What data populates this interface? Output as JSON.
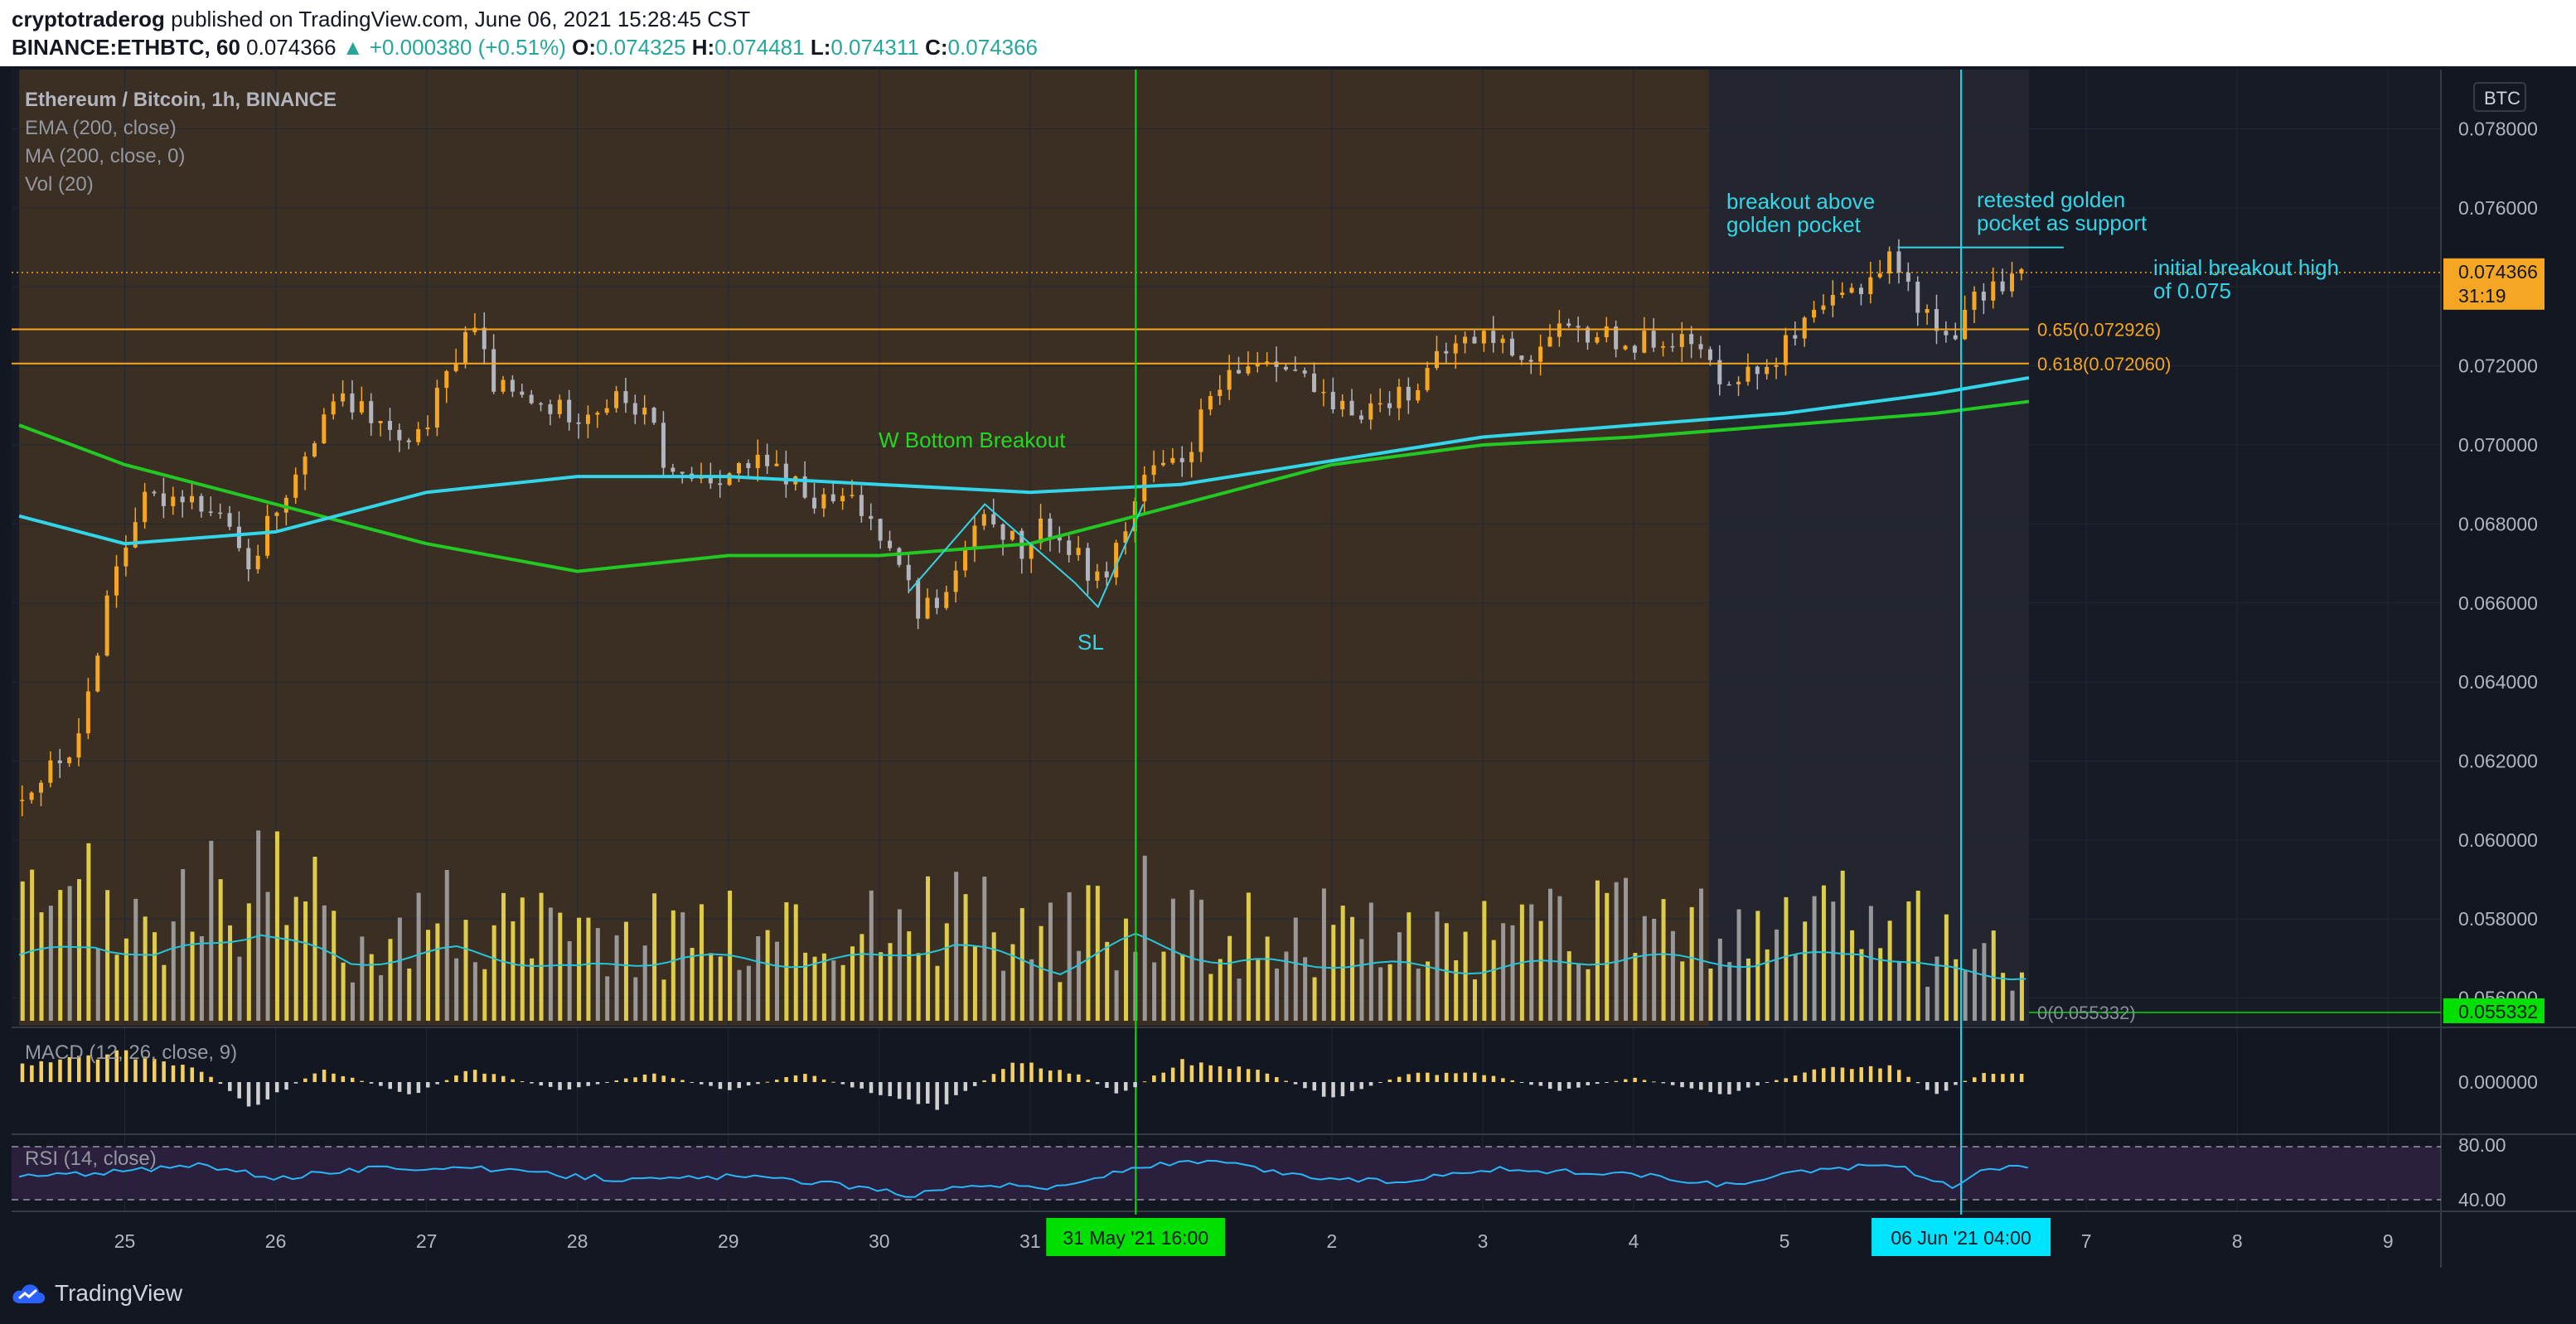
{
  "header": {
    "author": "cryptotraderog",
    "published_text": "published on TradingView.com, June 06, 2021 15:28:45 CST",
    "symbol": "BINANCE:ETHBTC, 60",
    "last": "0.074366",
    "change": "▲ +0.000380 (+0.51%)",
    "o_label": "O:",
    "o": "0.074325",
    "h_label": "H:",
    "h": "0.074481",
    "l_label": "L:",
    "l": "0.074311",
    "c_label": "C:",
    "c": "0.074366"
  },
  "legend": {
    "title": "Ethereum / Bitcoin, 1h, BINANCE",
    "ema": "EMA (200, close)",
    "ma": "MA (200, close, 0)",
    "vol": "Vol (20)",
    "macd": "MACD (12, 26, close, 9)",
    "rsi": "RSI (14, close)"
  },
  "footer": {
    "brand": "TradingView"
  },
  "chart_data": {
    "type": "candlestick",
    "title": "Ethereum / Bitcoin, 1h, BINANCE",
    "currency_badge": "BTC",
    "y_ticks": [
      "0.078000",
      "0.076000",
      "0.074000",
      "0.072000",
      "0.070000",
      "0.068000",
      "0.066000",
      "0.064000",
      "0.062000",
      "0.060000",
      "0.058000",
      "0.056000"
    ],
    "y_ticks_values": [
      0.078,
      0.076,
      0.074,
      0.072,
      0.07,
      0.068,
      0.066,
      0.064,
      0.062,
      0.06,
      0.058,
      0.056
    ],
    "ylim": [
      0.0553,
      0.0795
    ],
    "x_ticks": [
      "25",
      "26",
      "27",
      "28",
      "29",
      "30",
      "31",
      "2",
      "3",
      "4",
      "5",
      "7",
      "8",
      "9"
    ],
    "x_ticks_values": [
      25,
      26,
      27,
      28,
      29,
      30,
      31,
      33,
      34,
      35,
      36,
      38,
      39,
      40
    ],
    "xlim": [
      24.25,
      40.35
    ],
    "price_path": [
      [
        24.3,
        0.061
      ],
      [
        24.7,
        0.0625
      ],
      [
        24.9,
        0.0665
      ],
      [
        25.1,
        0.0685
      ],
      [
        25.4,
        0.0688
      ],
      [
        25.7,
        0.068
      ],
      [
        25.8,
        0.0665
      ],
      [
        26,
        0.0685
      ],
      [
        26.2,
        0.0695
      ],
      [
        26.35,
        0.0712
      ],
      [
        26.6,
        0.0708
      ],
      [
        26.9,
        0.0698
      ],
      [
        27.15,
        0.0718
      ],
      [
        27.28,
        0.0732
      ],
      [
        27.45,
        0.0715
      ],
      [
        27.7,
        0.071
      ],
      [
        28,
        0.0708
      ],
      [
        28.3,
        0.0712
      ],
      [
        28.5,
        0.0705
      ],
      [
        28.6,
        0.0692
      ],
      [
        28.9,
        0.0692
      ],
      [
        29.2,
        0.0695
      ],
      [
        29.4,
        0.0692
      ],
      [
        29.55,
        0.0685
      ],
      [
        29.8,
        0.0686
      ],
      [
        30.1,
        0.0675
      ],
      [
        30.25,
        0.0658
      ],
      [
        30.45,
        0.0662
      ],
      [
        30.6,
        0.0676
      ],
      [
        30.75,
        0.0682
      ],
      [
        30.95,
        0.0672
      ],
      [
        31.1,
        0.068
      ],
      [
        31.3,
        0.0672
      ],
      [
        31.45,
        0.0665
      ],
      [
        31.65,
        0.068
      ],
      [
        31.75,
        0.0692
      ],
      [
        32,
        0.0695
      ],
      [
        32.2,
        0.0712
      ],
      [
        32.5,
        0.0722
      ],
      [
        32.7,
        0.0722
      ],
      [
        33,
        0.0708
      ],
      [
        33.3,
        0.071
      ],
      [
        33.55,
        0.0715
      ],
      [
        33.8,
        0.0725
      ],
      [
        34,
        0.0728
      ],
      [
        34.3,
        0.0722
      ],
      [
        34.5,
        0.0728
      ],
      [
        34.8,
        0.0728
      ],
      [
        35,
        0.0725
      ],
      [
        35.2,
        0.0728
      ],
      [
        35.4,
        0.0725
      ],
      [
        35.55,
        0.0718
      ],
      [
        35.8,
        0.0718
      ],
      [
        36,
        0.0725
      ],
      [
        36.3,
        0.0735
      ],
      [
        36.55,
        0.0742
      ],
      [
        36.7,
        0.0748
      ],
      [
        36.85,
        0.0738
      ],
      [
        37,
        0.0729
      ],
      [
        37.1,
        0.0728
      ],
      [
        37.3,
        0.0738
      ],
      [
        37.5,
        0.0743
      ],
      [
        37.62,
        0.07437
      ]
    ],
    "ema_200": [
      [
        24.3,
        0.0705
      ],
      [
        25,
        0.0695
      ],
      [
        26,
        0.0685
      ],
      [
        27,
        0.0675
      ],
      [
        28,
        0.0668
      ],
      [
        29,
        0.0672
      ],
      [
        30,
        0.0672
      ],
      [
        31,
        0.0675
      ],
      [
        31.5,
        0.068
      ],
      [
        32,
        0.0685
      ],
      [
        33,
        0.0695
      ],
      [
        34,
        0.07
      ],
      [
        35,
        0.0702
      ],
      [
        36,
        0.0705
      ],
      [
        37,
        0.0708
      ],
      [
        37.62,
        0.0711
      ]
    ],
    "ma_200": [
      [
        24.3,
        0.0682
      ],
      [
        25,
        0.0675
      ],
      [
        26,
        0.0678
      ],
      [
        27,
        0.0688
      ],
      [
        28,
        0.0692
      ],
      [
        29,
        0.0692
      ],
      [
        30,
        0.069
      ],
      [
        31,
        0.0688
      ],
      [
        32,
        0.069
      ],
      [
        33,
        0.0696
      ],
      [
        34,
        0.0702
      ],
      [
        35,
        0.0705
      ],
      [
        36,
        0.0708
      ],
      [
        37,
        0.0713
      ],
      [
        37.62,
        0.0717
      ]
    ],
    "fib_levels": [
      {
        "label": "0.65(0.072926)",
        "value": 0.072926
      },
      {
        "label": "0.618(0.072060)",
        "value": 0.07206
      }
    ],
    "current_price": "0.074366",
    "countdown": "31:19",
    "volume_badge": "0.055332",
    "volume_zero_label": "0(0.055332)",
    "zero_line_value": 0.055332,
    "vertical_markers": [
      {
        "label": "31 May '21   16:00",
        "x": 31.7,
        "color": "#00e000"
      },
      {
        "label": "06 Jun '21   04:00",
        "x": 37.17,
        "color": "#00e5ff"
      }
    ],
    "annotations": {
      "w_bottom": "W Bottom Breakout",
      "sl": "SL",
      "breakout_above": [
        "breakout above",
        "golden pocket"
      ],
      "retested": [
        "retested golden",
        "pocket as support"
      ],
      "initial_high": [
        "initial breakout high",
        "of 0.075"
      ]
    },
    "w_pattern": [
      [
        30.2,
        0.0663
      ],
      [
        30.7,
        0.0685
      ],
      [
        31.3,
        0.0665
      ],
      [
        31.45,
        0.0659
      ],
      [
        31.75,
        0.0685
      ]
    ],
    "breakout_high_line": [
      [
        36.75,
        0.075
      ],
      [
        37.85,
        0.075
      ]
    ],
    "shaded_region_x": [
      24.3,
      35.5
    ],
    "macd_zero_label": "0.000000",
    "rsi_ticks": [
      "80.00",
      "40.00"
    ],
    "rsi_path": [
      [
        24.3,
        50
      ],
      [
        25,
        55
      ],
      [
        25.5,
        62
      ],
      [
        26,
        48
      ],
      [
        26.6,
        58
      ],
      [
        27.2,
        60
      ],
      [
        27.8,
        52
      ],
      [
        28.4,
        46
      ],
      [
        29,
        50
      ],
      [
        29.6,
        44
      ],
      [
        30.2,
        30
      ],
      [
        30.6,
        42
      ],
      [
        31.2,
        38
      ],
      [
        31.7,
        60
      ],
      [
        32.2,
        66
      ],
      [
        32.8,
        50
      ],
      [
        33.4,
        44
      ],
      [
        34,
        58
      ],
      [
        34.5,
        55
      ],
      [
        35,
        52
      ],
      [
        35.6,
        40
      ],
      [
        36.2,
        56
      ],
      [
        36.7,
        64
      ],
      [
        37.1,
        38
      ],
      [
        37.3,
        58
      ],
      [
        37.62,
        60
      ]
    ],
    "macd_hist": [
      [
        24.3,
        0.4
      ],
      [
        25,
        0.7
      ],
      [
        25.5,
        0.3
      ],
      [
        25.85,
        -0.6
      ],
      [
        26.3,
        0.3
      ],
      [
        26.9,
        -0.3
      ],
      [
        27.3,
        0.3
      ],
      [
        27.9,
        -0.2
      ],
      [
        28.5,
        0.2
      ],
      [
        29,
        -0.2
      ],
      [
        29.5,
        0.2
      ],
      [
        30.1,
        -0.4
      ],
      [
        30.4,
        -0.6
      ],
      [
        30.9,
        0.5
      ],
      [
        31.3,
        0.2
      ],
      [
        31.6,
        -0.3
      ],
      [
        32,
        0.5
      ],
      [
        32.5,
        0.3
      ],
      [
        33,
        -0.4
      ],
      [
        33.5,
        0.2
      ],
      [
        34,
        0.2
      ],
      [
        34.5,
        -0.2
      ],
      [
        35,
        0.1
      ],
      [
        35.6,
        -0.3
      ],
      [
        36.2,
        0.3
      ],
      [
        36.7,
        0.4
      ],
      [
        37,
        -0.3
      ],
      [
        37.3,
        0.2
      ],
      [
        37.62,
        0.2
      ]
    ],
    "volume_path": [
      [
        24.3,
        0.5
      ],
      [
        24.8,
        0.6
      ],
      [
        25.2,
        0.5
      ],
      [
        25.9,
        0.7
      ],
      [
        26.5,
        0.45
      ],
      [
        27.2,
        0.55
      ],
      [
        28,
        0.4
      ],
      [
        28.7,
        0.5
      ],
      [
        29.5,
        0.45
      ],
      [
        30,
        0.5
      ],
      [
        30.5,
        0.6
      ],
      [
        31.2,
        0.4
      ],
      [
        31.7,
        0.65
      ],
      [
        32.3,
        0.45
      ],
      [
        33,
        0.45
      ],
      [
        34,
        0.4
      ],
      [
        35,
        0.5
      ],
      [
        35.8,
        0.45
      ],
      [
        36.5,
        0.55
      ],
      [
        37,
        0.4
      ],
      [
        37.62,
        0.35
      ]
    ]
  }
}
